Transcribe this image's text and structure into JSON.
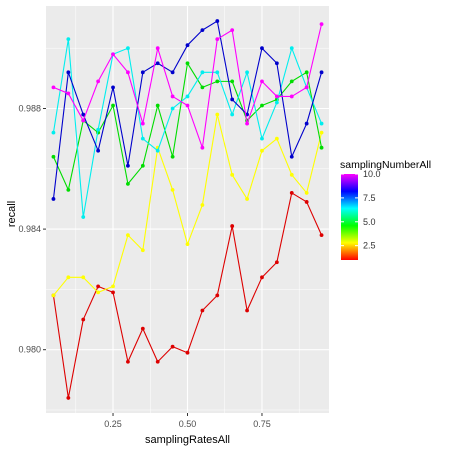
{
  "chart_data": {
    "type": "line",
    "xlabel": "samplingRatesAll",
    "ylabel": "recall",
    "xlim": [
      0.025,
      0.975
    ],
    "ylim": [
      0.9779,
      0.9914
    ],
    "x_ticks": [
      0.25,
      0.5,
      0.75
    ],
    "x_tick_labels": [
      "0.25",
      "0.50",
      "0.75"
    ],
    "y_ticks": [
      0.98,
      0.984,
      0.988
    ],
    "y_tick_labels": [
      "0.980",
      "0.984",
      "0.988"
    ],
    "grid": true,
    "background": "#ebebeb",
    "legend": {
      "title": "samplingNumberAll",
      "position": "right",
      "type": "colorbar",
      "range": [
        1,
        10
      ],
      "ticks": [
        2.5,
        5.0,
        7.5,
        10.0
      ],
      "tick_labels": [
        "2.5",
        "5.0",
        "7.5",
        "10.0"
      ],
      "colors": [
        "#ff0000",
        "#ffff00",
        "#00ff00",
        "#00ffff",
        "#0000ff",
        "#ff00ff"
      ]
    },
    "x": [
      0.05,
      0.1,
      0.15,
      0.2,
      0.25,
      0.3,
      0.35,
      0.4,
      0.45,
      0.5,
      0.55,
      0.6,
      0.65,
      0.7,
      0.75,
      0.8,
      0.85,
      0.9,
      0.95
    ],
    "series": [
      {
        "color": "#dd0000",
        "values": [
          0.9818,
          0.9784,
          0.981,
          0.9821,
          0.9819,
          0.9796,
          0.9807,
          0.9796,
          0.9801,
          0.9799,
          0.9813,
          0.9818,
          0.9841,
          0.9813,
          0.9824,
          0.9829,
          0.9852,
          0.9849,
          0.9838
        ]
      },
      {
        "color": "#ffff00",
        "values": [
          0.9818,
          0.9824,
          0.9824,
          0.9819,
          0.9821,
          0.9838,
          0.9833,
          0.9867,
          0.9853,
          0.9835,
          0.9848,
          0.9878,
          0.9858,
          0.985,
          0.9866,
          0.987,
          0.9858,
          0.9852,
          0.9872
        ]
      },
      {
        "color": "#00dd00",
        "values": [
          0.9864,
          0.9853,
          0.9876,
          0.9872,
          0.9881,
          0.9855,
          0.9861,
          0.9881,
          0.9864,
          0.9895,
          0.9887,
          0.9889,
          0.9889,
          0.9876,
          0.9881,
          0.9883,
          0.9889,
          0.9892,
          0.9867
        ]
      },
      {
        "color": "#00eeee",
        "values": [
          0.9872,
          0.9903,
          0.9844,
          0.9873,
          0.9898,
          0.99,
          0.987,
          0.9866,
          0.988,
          0.9884,
          0.9892,
          0.9892,
          0.9878,
          0.9892,
          0.987,
          0.9882,
          0.99,
          0.9887,
          0.9875
        ]
      },
      {
        "color": "#0000cc",
        "values": [
          0.985,
          0.9892,
          0.9878,
          0.9866,
          0.9887,
          0.9861,
          0.9892,
          0.9895,
          0.9892,
          0.9901,
          0.9906,
          0.9909,
          0.9883,
          0.9878,
          0.99,
          0.9895,
          0.9864,
          0.9875,
          0.9892
        ]
      },
      {
        "color": "#ff00ff",
        "values": [
          0.9887,
          0.9885,
          0.9876,
          0.9889,
          0.9898,
          0.9892,
          0.9875,
          0.99,
          0.9884,
          0.9881,
          0.9867,
          0.9903,
          0.9906,
          0.9875,
          0.9889,
          0.9884,
          0.9884,
          0.9887,
          0.9908
        ]
      }
    ]
  }
}
